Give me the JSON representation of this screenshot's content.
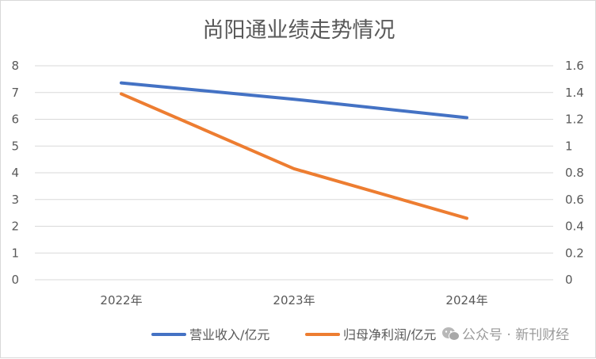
{
  "chart_data": {
    "type": "line",
    "title": "尚阳通业绩走势情况",
    "categories": [
      "2022年",
      "2023年",
      "2024年"
    ],
    "series": [
      {
        "name": "营业收入/亿元",
        "axis": "left",
        "color": "#4472C4",
        "values": [
          7.36,
          6.75,
          6.06
        ]
      },
      {
        "name": "归母净利润/亿元",
        "axis": "right",
        "color": "#ED7D31",
        "values": [
          1.39,
          0.83,
          0.46
        ]
      }
    ],
    "y_left": {
      "min": 0,
      "max": 8,
      "ticks": [
        "0",
        "1",
        "2",
        "3",
        "4",
        "5",
        "6",
        "7",
        "8"
      ]
    },
    "y_right": {
      "min": 0,
      "max": 1.6,
      "ticks": [
        "0",
        "0.2",
        "0.4",
        "0.6",
        "0.8",
        "1",
        "1.2",
        "1.4",
        "1.6"
      ]
    },
    "grid": true,
    "legend_position": "bottom"
  },
  "watermark": {
    "text": "公众号 · 新刊财经",
    "icon": "wechat-icon"
  },
  "colors": {
    "grid": "#d9d9d9",
    "text": "#595959"
  }
}
